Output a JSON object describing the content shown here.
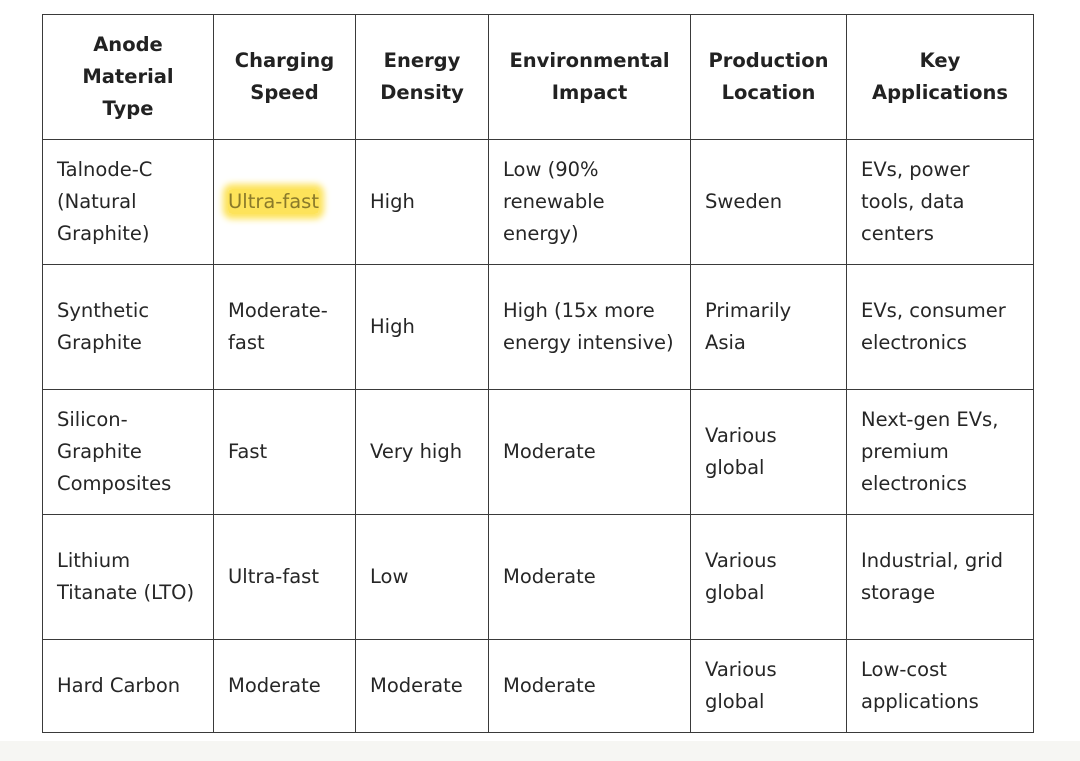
{
  "table": {
    "headers": [
      "Anode Material Type",
      "Charging Speed",
      "Energy Density",
      "Environmental Impact",
      "Production Location",
      "Key Applications"
    ],
    "rows": [
      [
        "Talnode-C (Natural Graphite)",
        "Ultra-fast",
        "High",
        "Low (90% renewable energy)",
        "Sweden",
        "EVs, power tools, data centers"
      ],
      [
        "Synthetic Graphite",
        "Moderate-fast",
        "High",
        "High (15x more energy intensive)",
        "Primarily Asia",
        "EVs, consumer electronics"
      ],
      [
        "Silicon-Graphite Composites",
        "Fast",
        "Very high",
        "Moderate",
        "Various global",
        "Next-gen EVs, premium electronics"
      ],
      [
        "Lithium Titanate (LTO)",
        "Ultra-fast",
        "Low",
        "Moderate",
        "Various global",
        "Industrial, grid storage"
      ],
      [
        "Hard Carbon",
        "Moderate",
        "Moderate",
        "Moderate",
        "Various global",
        "Low-cost applications"
      ]
    ],
    "highlight_color": "#fde35a",
    "border_color": "#3a3a3a"
  }
}
